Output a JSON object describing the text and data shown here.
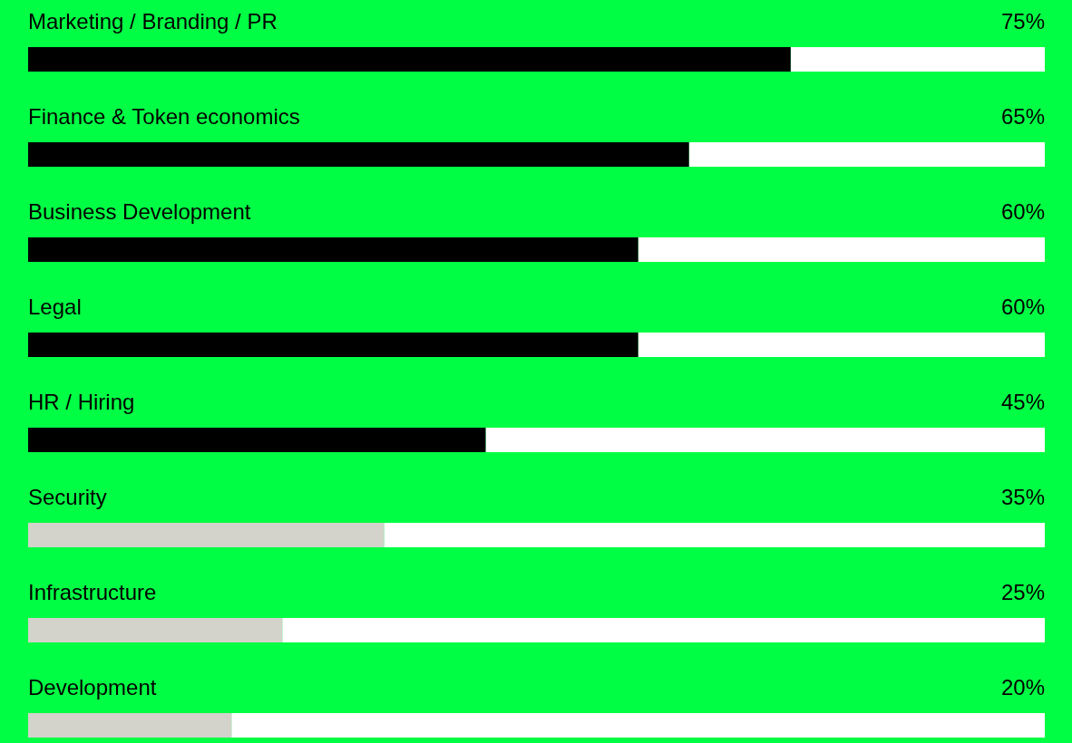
{
  "chart_data": {
    "type": "bar",
    "orientation": "horizontal",
    "categories": [
      "Marketing / Branding / PR",
      "Finance & Token economics",
      "Business Development",
      "Legal",
      "HR / Hiring",
      "Security",
      "Infrastructure",
      "Development"
    ],
    "values": [
      75,
      65,
      60,
      60,
      45,
      35,
      25,
      20
    ],
    "value_labels": [
      "75%",
      "65%",
      "60%",
      "60%",
      "45%",
      "35%",
      "25%",
      "20%"
    ],
    "colors": [
      "#000000",
      "#000000",
      "#000000",
      "#000000",
      "#000000",
      "#d3d2cb",
      "#d3d2cb",
      "#d3d2cb"
    ],
    "xlim": [
      0,
      100
    ]
  }
}
